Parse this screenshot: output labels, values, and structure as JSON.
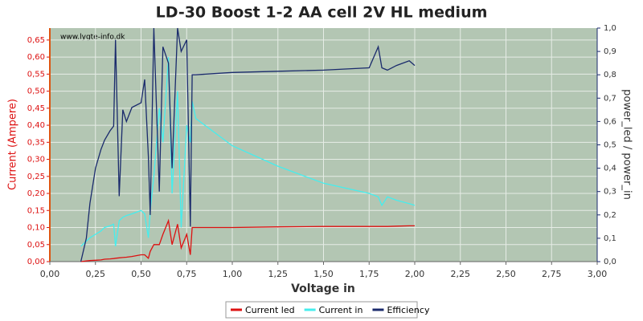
{
  "chart_data": {
    "type": "line",
    "title": "LD-30 Boost 1-2 AA cell 2V HL medium",
    "watermark": "www.lygte-info.dk",
    "x_label": "Voltage in",
    "y_label": "Current (Ampere)",
    "y2_label": "power_led / power_in",
    "x": [
      0.17,
      0.2,
      0.22,
      0.25,
      0.28,
      0.3,
      0.33,
      0.35,
      0.36,
      0.38,
      0.4,
      0.42,
      0.45,
      0.5,
      0.52,
      0.54,
      0.55,
      0.57,
      0.6,
      0.62,
      0.65,
      0.67,
      0.7,
      0.72,
      0.75,
      0.77,
      0.78,
      0.8,
      0.9,
      1.0,
      1.25,
      1.5,
      1.75,
      1.8,
      1.82,
      1.85,
      1.9,
      1.97,
      2.0
    ],
    "series": [
      {
        "name": "Current led",
        "color": "#dd1111",
        "axis": "y",
        "values": [
          0,
          0.002,
          0.003,
          0.004,
          0.005,
          0.007,
          0.008,
          0.009,
          0.01,
          0.011,
          0.012,
          0.013,
          0.015,
          0.02,
          0.02,
          0.01,
          0.03,
          0.05,
          0.05,
          0.08,
          0.12,
          0.05,
          0.11,
          0.04,
          0.08,
          0.02,
          0.1,
          0.1,
          0.1,
          0.1,
          0.102,
          0.103,
          0.103,
          0.103,
          0.103,
          0.103,
          0.104,
          0.105,
          0.105
        ]
      },
      {
        "name": "Current in",
        "color": "#44eeee",
        "axis": "y",
        "values": [
          0.045,
          0.06,
          0.07,
          0.08,
          0.09,
          0.1,
          0.105,
          0.11,
          0.045,
          0.12,
          0.13,
          0.135,
          0.14,
          0.15,
          0.14,
          0.07,
          0.15,
          0.25,
          0.45,
          0.35,
          0.6,
          0.2,
          0.5,
          0.1,
          0.4,
          0.35,
          0.47,
          0.42,
          0.38,
          0.34,
          0.28,
          0.23,
          0.2,
          0.19,
          0.165,
          0.19,
          0.18,
          0.17,
          0.165
        ]
      },
      {
        "name": "Efficiency",
        "color": "#1a2a6c",
        "axis": "y2",
        "values": [
          0,
          0.1,
          0.25,
          0.4,
          0.48,
          0.52,
          0.56,
          0.58,
          0.95,
          0.28,
          0.65,
          0.6,
          0.66,
          0.68,
          0.78,
          0.45,
          0.2,
          1.0,
          0.3,
          0.92,
          0.85,
          0.4,
          1.0,
          0.9,
          0.95,
          0.15,
          0.8,
          0.8,
          0.805,
          0.81,
          0.815,
          0.82,
          0.83,
          0.92,
          0.83,
          0.82,
          0.84,
          0.86,
          0.84
        ]
      }
    ],
    "xlim": [
      0,
      3
    ],
    "ylim": [
      0,
      0.685
    ],
    "y2lim": [
      0,
      1
    ],
    "xticks": [
      {
        "value": 0,
        "label": "0,00"
      },
      {
        "value": 0.25,
        "label": "0,25"
      },
      {
        "value": 0.5,
        "label": "0,50"
      },
      {
        "value": 0.75,
        "label": "0,75"
      },
      {
        "value": 1,
        "label": "1,00"
      },
      {
        "value": 1.25,
        "label": "1,25"
      },
      {
        "value": 1.5,
        "label": "1,50"
      },
      {
        "value": 1.75,
        "label": "1,75"
      },
      {
        "value": 2,
        "label": "2,00"
      },
      {
        "value": 2.25,
        "label": "2,25"
      },
      {
        "value": 2.5,
        "label": "2,50"
      },
      {
        "value": 2.75,
        "label": "2,75"
      },
      {
        "value": 3,
        "label": "3,00"
      }
    ],
    "yticks": [
      {
        "value": 0,
        "label": "0,00"
      },
      {
        "value": 0.05,
        "label": "0,05"
      },
      {
        "value": 0.1,
        "label": "0,10"
      },
      {
        "value": 0.15,
        "label": "0,15"
      },
      {
        "value": 0.2,
        "label": "0,20"
      },
      {
        "value": 0.25,
        "label": "0,25"
      },
      {
        "value": 0.3,
        "label": "0,30"
      },
      {
        "value": 0.35,
        "label": "0,35"
      },
      {
        "value": 0.4,
        "label": "0,40"
      },
      {
        "value": 0.45,
        "label": "0,45"
      },
      {
        "value": 0.5,
        "label": "0,50"
      },
      {
        "value": 0.55,
        "label": "0,55"
      },
      {
        "value": 0.6,
        "label": "0,60"
      },
      {
        "value": 0.65,
        "label": "0,65"
      }
    ],
    "y2ticks": [
      {
        "value": 0,
        "label": "0,0"
      },
      {
        "value": 0.1,
        "label": "0,1"
      },
      {
        "value": 0.2,
        "label": "0,2"
      },
      {
        "value": 0.3,
        "label": "0,3"
      },
      {
        "value": 0.4,
        "label": "0,4"
      },
      {
        "value": 0.5,
        "label": "0,5"
      },
      {
        "value": 0.6,
        "label": "0,6"
      },
      {
        "value": 0.7,
        "label": "0,7"
      },
      {
        "value": 0.8,
        "label": "0,8"
      },
      {
        "value": 0.9,
        "label": "0,9"
      },
      {
        "value": 1,
        "label": "1,0"
      }
    ],
    "grid": true
  }
}
